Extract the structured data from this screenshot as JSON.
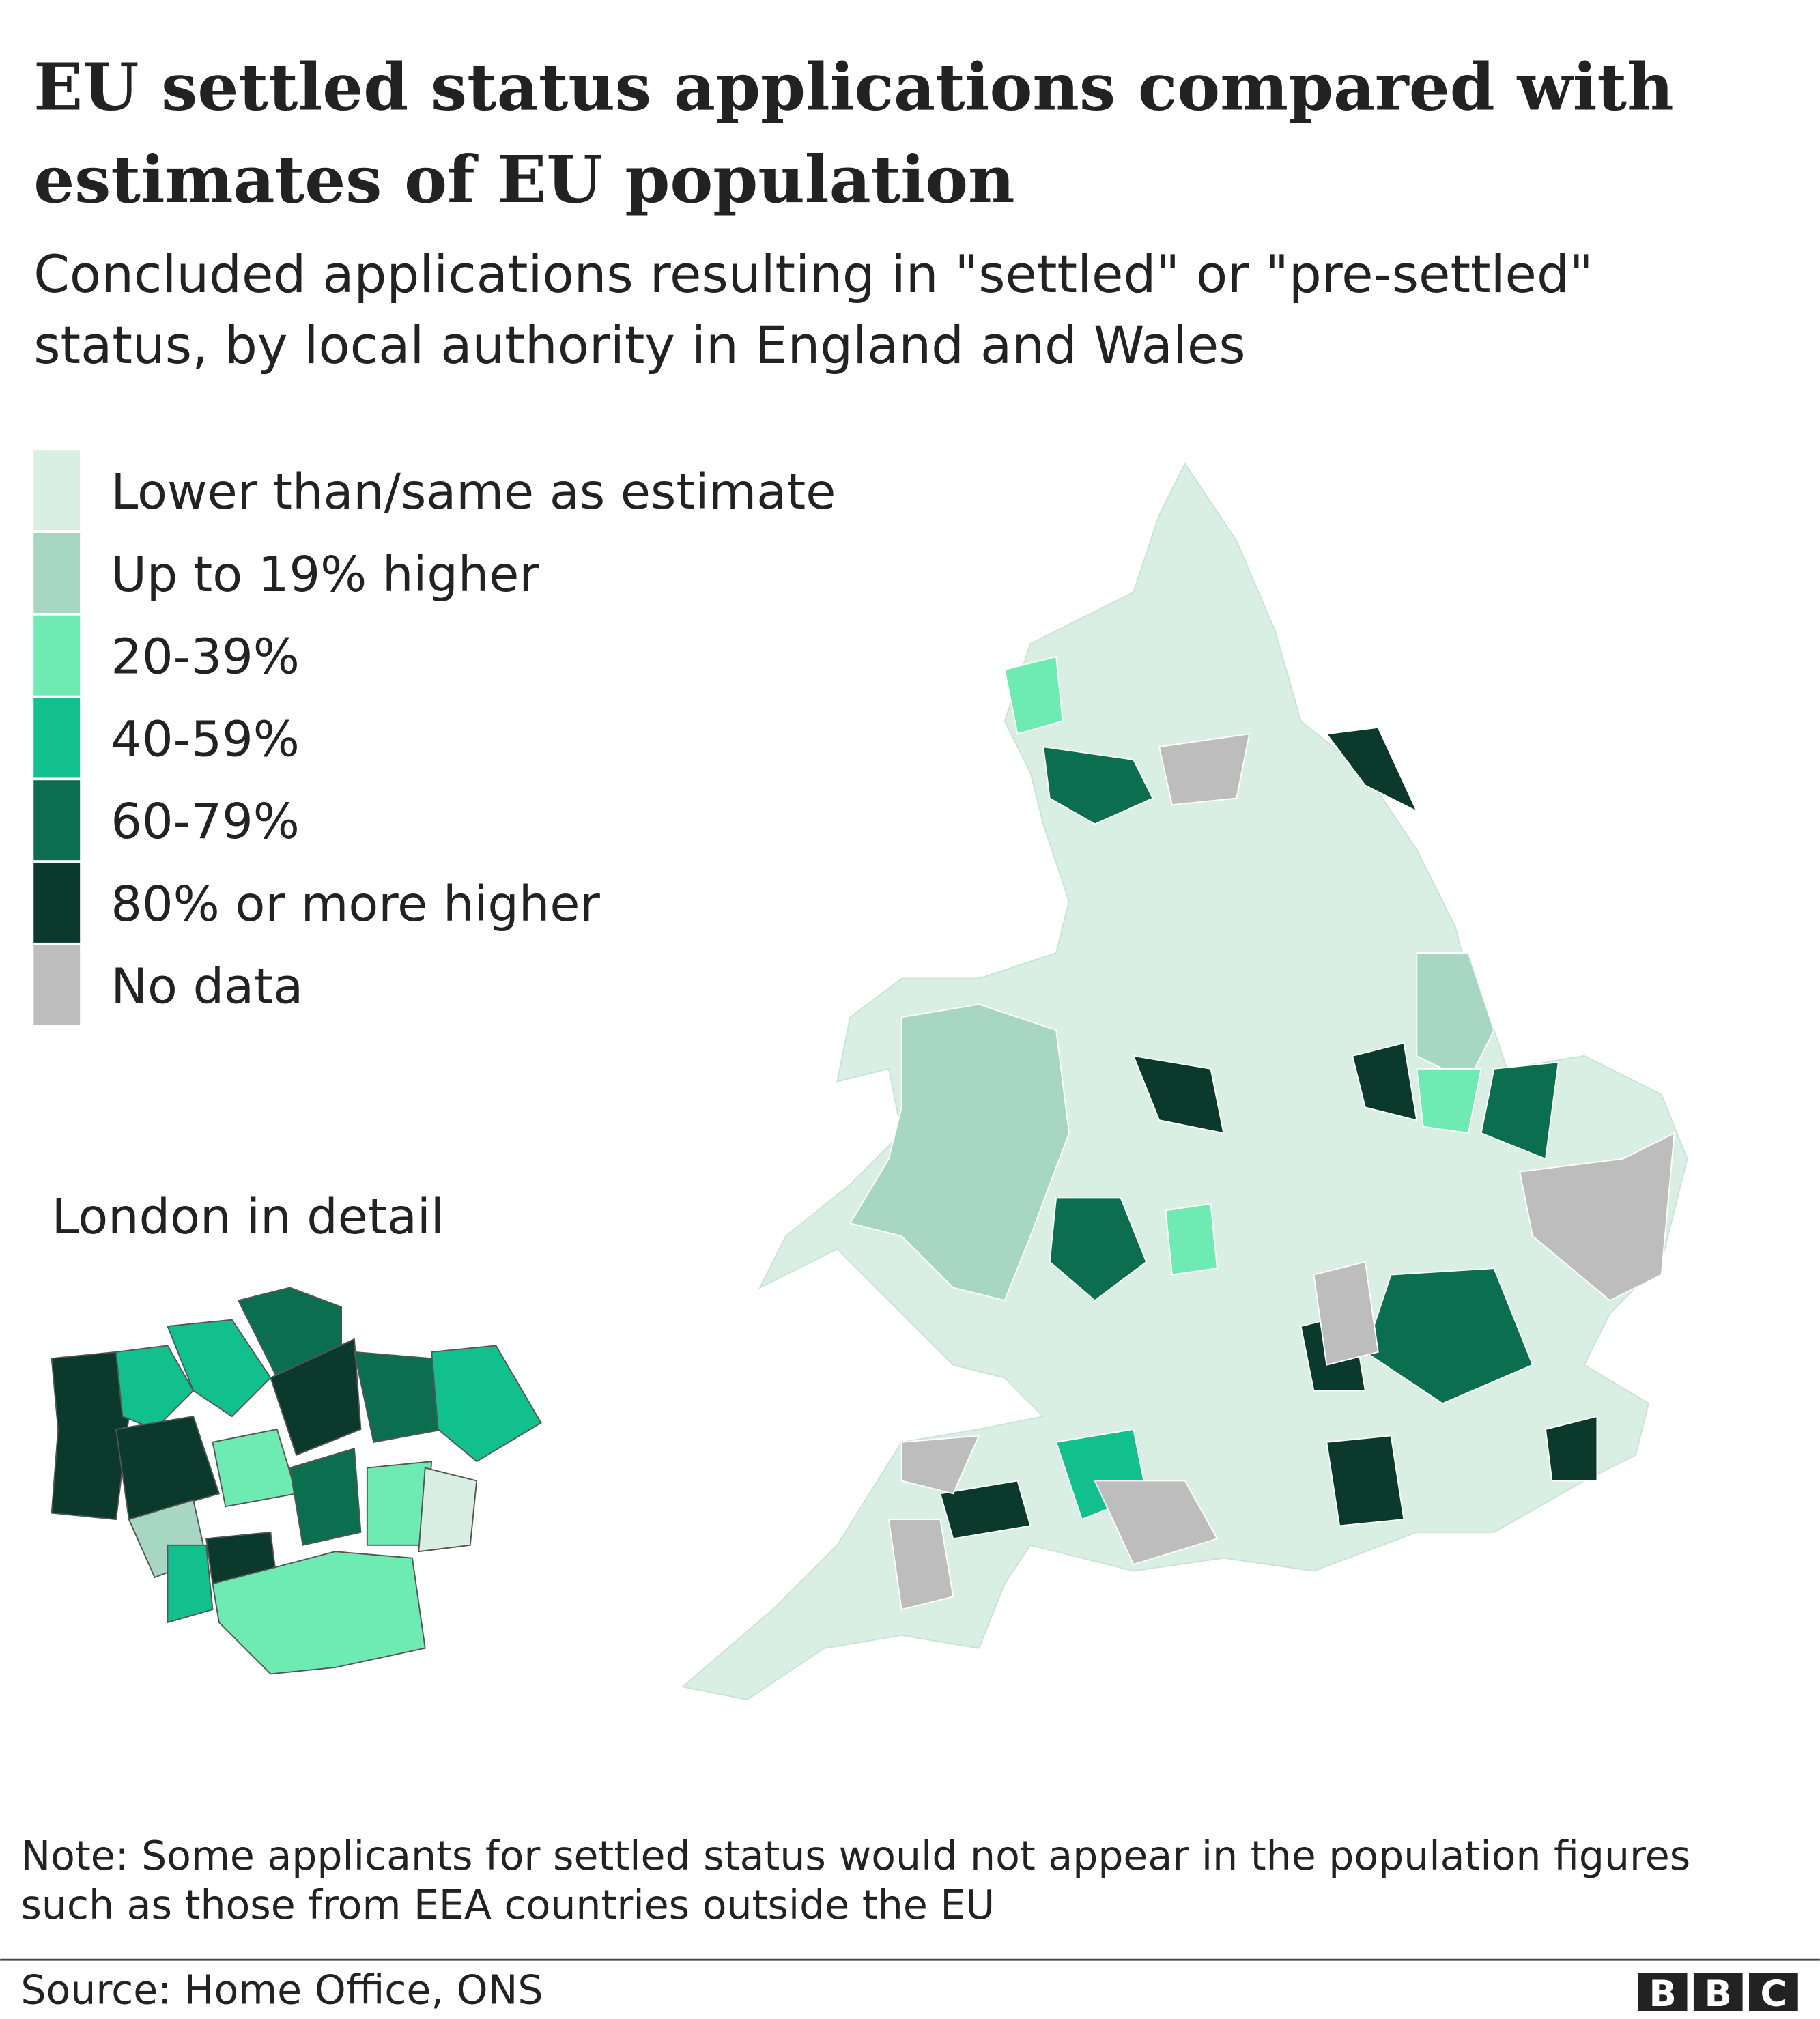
{
  "title": [
    "EU settled status applications compared with",
    "estimates of EU population"
  ],
  "subtitle": [
    "Concluded applications resulting in \"settled\" or \"pre-settled\"",
    "status, by local authority in England and Wales"
  ],
  "legend": [
    {
      "label": "Lower than/same as estimate",
      "color": "#daefe3"
    },
    {
      "label": "Up to 19% higher",
      "color": "#a7d7c3"
    },
    {
      "label": "20-39%",
      "color": "#6eeab3"
    },
    {
      "label": "40-59%",
      "color": "#12c08e"
    },
    {
      "label": "60-79%",
      "color": "#0b6e4f"
    },
    {
      "label": "80% or more higher",
      "color": "#0b3a2c"
    },
    {
      "label": "No data",
      "color": "#bdbdbd"
    }
  ],
  "inset_label": "London in detail",
  "note": [
    "Note: Some applicants for settled status would not appear in the population figures",
    "such as those from EEA countries outside the EU"
  ],
  "source": "Source: Home Office, ONS",
  "logo": [
    "B",
    "B",
    "C"
  ]
}
